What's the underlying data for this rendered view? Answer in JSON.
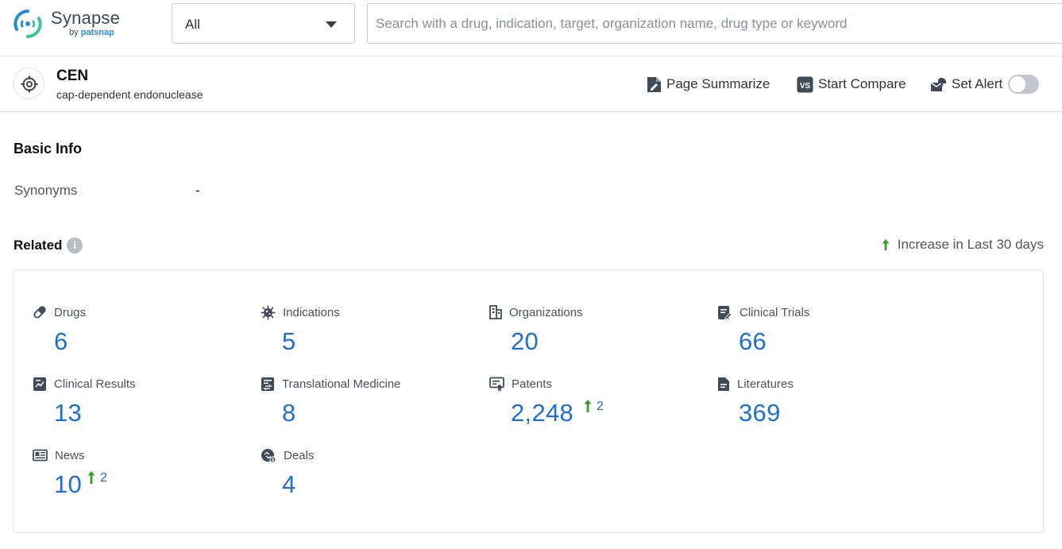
{
  "app": {
    "logo_name": "Synapse",
    "logo_by": "by",
    "logo_brand": "patsnap"
  },
  "search": {
    "scope_value": "All",
    "placeholder": "Search with a drug, indication, target, organization name, drug type or keyword"
  },
  "entity": {
    "title": "CEN",
    "subtitle": "cap-dependent endonuclease",
    "icon": "target-icon"
  },
  "actions": {
    "summarize_label": "Page Summarize",
    "compare_label": "Start Compare",
    "alert_label": "Set Alert",
    "alert_enabled": false
  },
  "basic_info": {
    "title": "Basic Info",
    "synonyms_label": "Synonyms",
    "synonyms_value": "-"
  },
  "related": {
    "title": "Related",
    "legend_label": "Increase in Last 30 days",
    "increase_color": "#3a9a2a",
    "number_color": "#1f6fd0",
    "items": [
      {
        "label": "Drugs",
        "value": "6",
        "icon": "pill-icon"
      },
      {
        "label": "Indications",
        "value": "5",
        "icon": "virus-icon"
      },
      {
        "label": "Organizations",
        "value": "20",
        "icon": "building-icon"
      },
      {
        "label": "Clinical Trials",
        "value": "66",
        "icon": "clipboard-edit-icon"
      },
      {
        "label": "Clinical Results",
        "value": "13",
        "icon": "chart-report-icon"
      },
      {
        "label": "Translational Medicine",
        "value": "8",
        "icon": "report-transfer-icon"
      },
      {
        "label": "Patents",
        "value": "2,248",
        "increase": "2",
        "icon": "certificate-icon"
      },
      {
        "label": "Literatures",
        "value": "369",
        "icon": "document-icon"
      },
      {
        "label": "News",
        "value": "10",
        "increase": "2",
        "icon": "newspaper-icon"
      },
      {
        "label": "Deals",
        "value": "4",
        "icon": "deal-icon"
      }
    ]
  }
}
